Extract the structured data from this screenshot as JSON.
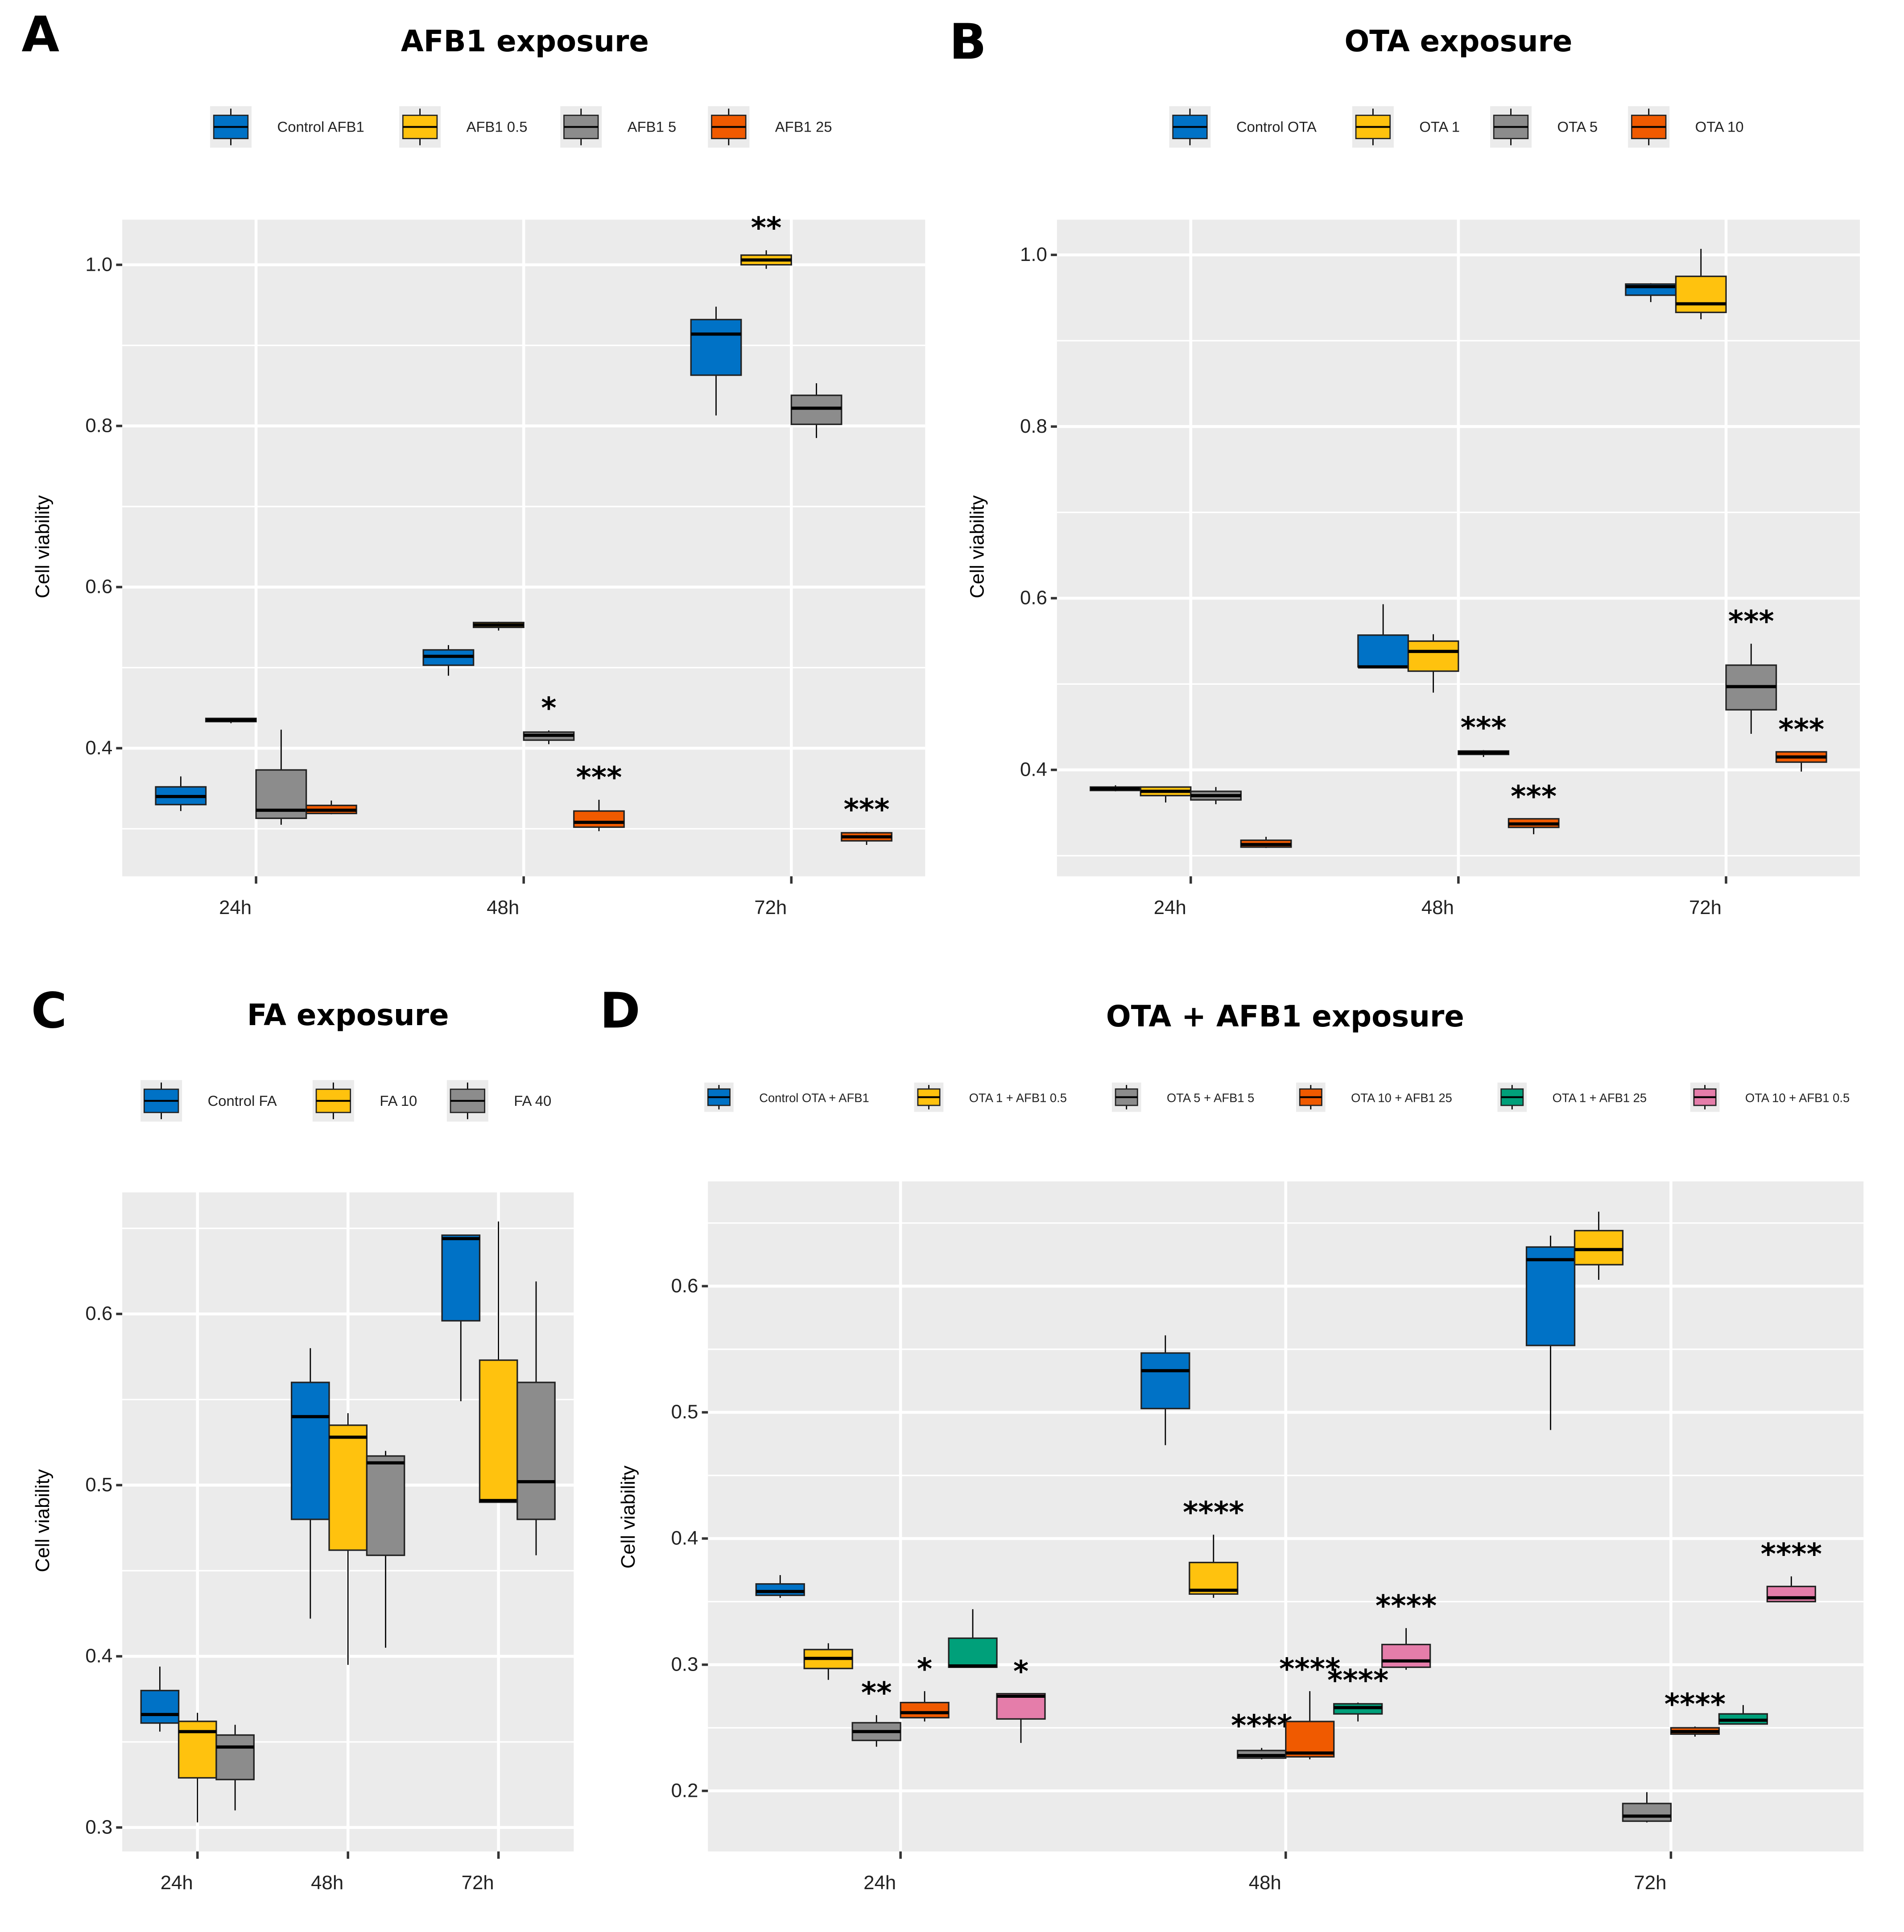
{
  "colors": {
    "panel_bg": "#EBEBEB",
    "grid": "#FFFFFF"
  },
  "chart_data": [
    {
      "panel": "A",
      "type": "box",
      "title": "AFB1 exposure",
      "ylabel": "Cell viability",
      "xlabel": "",
      "categories": [
        "24h",
        "48h",
        "72h"
      ],
      "ylim": [
        0.241,
        1.056
      ],
      "yticks": [
        0.4,
        0.6,
        0.8,
        1.0
      ],
      "ytick_labels": [
        "0.4",
        "0.6",
        "0.8",
        "1.0"
      ],
      "minor_grid": [
        0.3,
        0.5,
        0.7,
        0.9
      ],
      "grid": true,
      "legend": "top",
      "series": [
        {
          "name": "Control AFB1",
          "color": "#0072C6",
          "boxes": [
            {
              "min": 0.322,
              "q1": 0.33,
              "median": 0.34,
              "q3": 0.352,
              "max": 0.365,
              "sig": ""
            },
            {
              "min": 0.49,
              "q1": 0.503,
              "median": 0.514,
              "q3": 0.522,
              "max": 0.528,
              "sig": ""
            },
            {
              "min": 0.813,
              "q1": 0.863,
              "median": 0.914,
              "q3": 0.932,
              "max": 0.948,
              "sig": ""
            }
          ]
        },
        {
          "name": "AFB1 0.5",
          "color": "#FFC20E",
          "boxes": [
            {
              "min": 0.431,
              "q1": 0.433,
              "median": 0.435,
              "q3": 0.437,
              "max": 0.437,
              "sig": ""
            },
            {
              "min": 0.546,
              "q1": 0.55,
              "median": 0.553,
              "q3": 0.556,
              "max": 0.557,
              "sig": ""
            },
            {
              "min": 0.995,
              "q1": 1.0,
              "median": 1.006,
              "q3": 1.012,
              "max": 1.018,
              "sig": "**"
            }
          ]
        },
        {
          "name": "AFB1 5",
          "color": "#8C8C8C",
          "boxes": [
            {
              "min": 0.305,
              "q1": 0.313,
              "median": 0.323,
              "q3": 0.373,
              "max": 0.423,
              "sig": ""
            },
            {
              "min": 0.405,
              "q1": 0.41,
              "median": 0.416,
              "q3": 0.42,
              "max": 0.422,
              "sig": "*"
            },
            {
              "min": 0.785,
              "q1": 0.802,
              "median": 0.822,
              "q3": 0.838,
              "max": 0.853,
              "sig": ""
            }
          ]
        },
        {
          "name": "AFB1 25",
          "color": "#F05A00",
          "boxes": [
            {
              "min": 0.318,
              "q1": 0.319,
              "median": 0.323,
              "q3": 0.329,
              "max": 0.335,
              "sig": ""
            },
            {
              "min": 0.297,
              "q1": 0.302,
              "median": 0.308,
              "q3": 0.322,
              "max": 0.336,
              "sig": "***"
            },
            {
              "min": 0.28,
              "q1": 0.285,
              "median": 0.29,
              "q3": 0.295,
              "max": 0.296,
              "sig": "***"
            }
          ]
        }
      ]
    },
    {
      "panel": "B",
      "type": "box",
      "title": "OTA exposure",
      "ylabel": "Cell viability",
      "xlabel": "",
      "categories": [
        "24h",
        "48h",
        "72h"
      ],
      "ylim": [
        0.276,
        1.041
      ],
      "yticks": [
        0.4,
        0.6,
        0.8,
        1.0
      ],
      "ytick_labels": [
        "0.4",
        "0.6",
        "0.8",
        "1.0"
      ],
      "minor_grid": [
        0.3,
        0.5,
        0.7,
        0.9
      ],
      "grid": true,
      "legend": "top",
      "series": [
        {
          "name": "Control OTA",
          "color": "#0072C6",
          "boxes": [
            {
              "min": 0.375,
              "q1": 0.376,
              "median": 0.378,
              "q3": 0.38,
              "max": 0.382,
              "sig": ""
            },
            {
              "min": 0.52,
              "q1": 0.52,
              "median": 0.52,
              "q3": 0.557,
              "max": 0.593,
              "sig": ""
            },
            {
              "min": 0.945,
              "q1": 0.953,
              "median": 0.963,
              "q3": 0.966,
              "max": 0.967,
              "sig": ""
            }
          ]
        },
        {
          "name": "OTA 1",
          "color": "#FFC20E",
          "boxes": [
            {
              "min": 0.362,
              "q1": 0.37,
              "median": 0.375,
              "q3": 0.38,
              "max": 0.38,
              "sig": ""
            },
            {
              "min": 0.49,
              "q1": 0.515,
              "median": 0.538,
              "q3": 0.55,
              "max": 0.558,
              "sig": ""
            },
            {
              "min": 0.925,
              "q1": 0.933,
              "median": 0.943,
              "q3": 0.975,
              "max": 1.007,
              "sig": ""
            }
          ]
        },
        {
          "name": "OTA 5",
          "color": "#8C8C8C",
          "boxes": [
            {
              "min": 0.36,
              "q1": 0.365,
              "median": 0.37,
              "q3": 0.375,
              "max": 0.38,
              "sig": ""
            },
            {
              "min": 0.415,
              "q1": 0.418,
              "median": 0.42,
              "q3": 0.422,
              "max": 0.423,
              "sig": "***"
            },
            {
              "min": 0.442,
              "q1": 0.47,
              "median": 0.497,
              "q3": 0.522,
              "max": 0.547,
              "sig": "***"
            }
          ]
        },
        {
          "name": "OTA 10",
          "color": "#F05A00",
          "boxes": [
            {
              "min": 0.309,
              "q1": 0.31,
              "median": 0.313,
              "q3": 0.318,
              "max": 0.322,
              "sig": ""
            },
            {
              "min": 0.325,
              "q1": 0.333,
              "median": 0.337,
              "q3": 0.343,
              "max": 0.343,
              "sig": "***"
            },
            {
              "min": 0.398,
              "q1": 0.409,
              "median": 0.415,
              "q3": 0.421,
              "max": 0.421,
              "sig": "***"
            }
          ]
        }
      ]
    },
    {
      "panel": "C",
      "type": "box",
      "title": "FA exposure",
      "ylabel": "Cell viability",
      "xlabel": "",
      "categories": [
        "24h",
        "48h",
        "72h"
      ],
      "ylim": [
        0.286,
        0.671
      ],
      "yticks": [
        0.3,
        0.4,
        0.5,
        0.6
      ],
      "ytick_labels": [
        "0.3",
        "0.4",
        "0.5",
        "0.6"
      ],
      "minor_grid": [
        0.35,
        0.45,
        0.55,
        0.65
      ],
      "grid": true,
      "legend": "top",
      "series": [
        {
          "name": "Control FA",
          "color": "#0072C6",
          "boxes": [
            {
              "min": 0.356,
              "q1": 0.361,
              "median": 0.366,
              "q3": 0.38,
              "max": 0.394,
              "sig": ""
            },
            {
              "min": 0.422,
              "q1": 0.48,
              "median": 0.54,
              "q3": 0.56,
              "max": 0.58,
              "sig": ""
            },
            {
              "min": 0.549,
              "q1": 0.596,
              "median": 0.644,
              "q3": 0.646,
              "max": 0.646,
              "sig": ""
            }
          ]
        },
        {
          "name": "FA 10",
          "color": "#FFC20E",
          "boxes": [
            {
              "min": 0.303,
              "q1": 0.329,
              "median": 0.356,
              "q3": 0.362,
              "max": 0.367,
              "sig": ""
            },
            {
              "min": 0.395,
              "q1": 0.462,
              "median": 0.528,
              "q3": 0.535,
              "max": 0.542,
              "sig": ""
            },
            {
              "min": 0.49,
              "q1": 0.49,
              "median": 0.491,
              "q3": 0.573,
              "max": 0.654,
              "sig": ""
            }
          ]
        },
        {
          "name": "FA 40",
          "color": "#8C8C8C",
          "boxes": [
            {
              "min": 0.31,
              "q1": 0.328,
              "median": 0.347,
              "q3": 0.354,
              "max": 0.36,
              "sig": ""
            },
            {
              "min": 0.405,
              "q1": 0.459,
              "median": 0.513,
              "q3": 0.517,
              "max": 0.52,
              "sig": ""
            },
            {
              "min": 0.459,
              "q1": 0.48,
              "median": 0.502,
              "q3": 0.56,
              "max": 0.619,
              "sig": ""
            }
          ]
        }
      ]
    },
    {
      "panel": "D",
      "type": "box",
      "title": "OTA + AFB1 exposure",
      "ylabel": "Cell viability",
      "xlabel": "",
      "categories": [
        "24h",
        "48h",
        "72h"
      ],
      "ylim": [
        0.152,
        0.683
      ],
      "yticks": [
        0.2,
        0.3,
        0.4,
        0.5,
        0.6
      ],
      "ytick_labels": [
        "0.2",
        "0.3",
        "0.4",
        "0.5",
        "0.6"
      ],
      "minor_grid": [
        0.25,
        0.35,
        0.45,
        0.55,
        0.65
      ],
      "grid": true,
      "legend": "top",
      "series": [
        {
          "name": "Control OTA + AFB1",
          "color": "#0072C6",
          "boxes": [
            {
              "min": 0.353,
              "q1": 0.355,
              "median": 0.358,
              "q3": 0.364,
              "max": 0.371,
              "sig": ""
            },
            {
              "min": 0.474,
              "q1": 0.503,
              "median": 0.533,
              "q3": 0.547,
              "max": 0.561,
              "sig": ""
            },
            {
              "min": 0.486,
              "q1": 0.553,
              "median": 0.621,
              "q3": 0.631,
              "max": 0.64,
              "sig": ""
            }
          ]
        },
        {
          "name": "OTA 1 + AFB1 0.5",
          "color": "#FFC20E",
          "boxes": [
            {
              "min": 0.288,
              "q1": 0.297,
              "median": 0.305,
              "q3": 0.312,
              "max": 0.317,
              "sig": ""
            },
            {
              "min": 0.353,
              "q1": 0.356,
              "median": 0.359,
              "q3": 0.381,
              "max": 0.403,
              "sig": "****"
            },
            {
              "min": 0.605,
              "q1": 0.617,
              "median": 0.629,
              "q3": 0.644,
              "max": 0.659,
              "sig": ""
            }
          ]
        },
        {
          "name": "OTA 5 + AFB1 5",
          "color": "#8C8C8C",
          "boxes": [
            {
              "min": 0.235,
              "q1": 0.24,
              "median": 0.247,
              "q3": 0.254,
              "max": 0.26,
              "sig": "**"
            },
            {
              "min": 0.225,
              "q1": 0.226,
              "median": 0.228,
              "q3": 0.232,
              "max": 0.234,
              "sig": "****"
            },
            {
              "min": 0.175,
              "q1": 0.176,
              "median": 0.18,
              "q3": 0.19,
              "max": 0.199,
              "sig": ""
            }
          ]
        },
        {
          "name": "OTA 10 + AFB1 25",
          "color": "#F05A00",
          "boxes": [
            {
              "min": 0.255,
              "q1": 0.258,
              "median": 0.262,
              "q3": 0.27,
              "max": 0.279,
              "sig": "*"
            },
            {
              "min": 0.225,
              "q1": 0.227,
              "median": 0.23,
              "q3": 0.255,
              "max": 0.279,
              "sig": "****"
            },
            {
              "min": 0.243,
              "q1": 0.245,
              "median": 0.247,
              "q3": 0.25,
              "max": 0.251,
              "sig": "****"
            }
          ]
        },
        {
          "name": "OTA 1 + AFB1 25",
          "color": "#00A07A",
          "boxes": [
            {
              "min": 0.298,
              "q1": 0.298,
              "median": 0.299,
              "q3": 0.321,
              "max": 0.344,
              "sig": ""
            },
            {
              "min": 0.255,
              "q1": 0.261,
              "median": 0.266,
              "q3": 0.269,
              "max": 0.27,
              "sig": "****"
            },
            {
              "min": 0.253,
              "q1": 0.253,
              "median": 0.256,
              "q3": 0.261,
              "max": 0.268,
              "sig": ""
            }
          ]
        },
        {
          "name": "OTA 10 + AFB1 0.5",
          "color": "#E57DAA",
          "boxes": [
            {
              "min": 0.238,
              "q1": 0.257,
              "median": 0.275,
              "q3": 0.277,
              "max": 0.277,
              "sig": "*"
            },
            {
              "min": 0.296,
              "q1": 0.298,
              "median": 0.303,
              "q3": 0.316,
              "max": 0.329,
              "sig": "****"
            },
            {
              "min": 0.35,
              "q1": 0.35,
              "median": 0.353,
              "q3": 0.362,
              "max": 0.37,
              "sig": "****"
            }
          ]
        }
      ]
    }
  ]
}
